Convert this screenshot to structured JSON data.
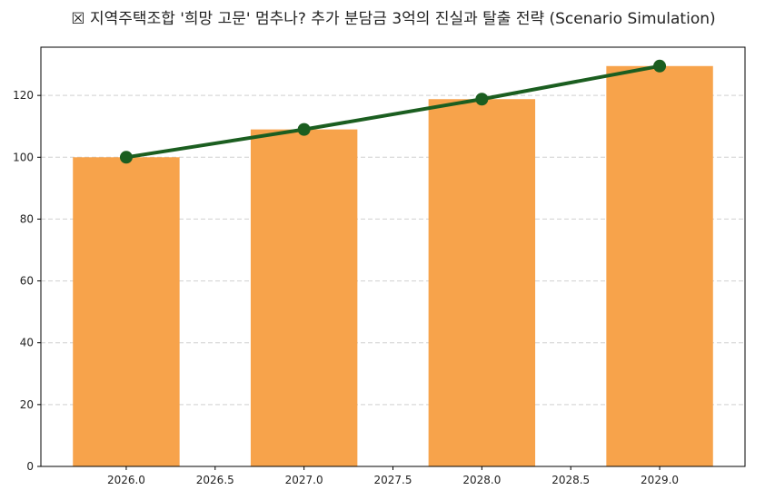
{
  "chart_data": {
    "type": "bar",
    "title": "☒ 지역주택조합 '희망 고문' 멈추나? 추가 분담금 3억의 진실과 탈출 전략 (Scenario Simulation)",
    "xlabel": "",
    "ylabel": "",
    "x": [
      2026,
      2027,
      2028,
      2029
    ],
    "bar_values": [
      100,
      109,
      118.8,
      129.5
    ],
    "line_values": [
      100,
      109,
      118.8,
      129.5
    ],
    "xlim": [
      2025.52,
      2029.48
    ],
    "ylim": [
      0,
      135.6
    ],
    "xticks": [
      "2026.0",
      "2026.5",
      "2027.0",
      "2027.5",
      "2028.0",
      "2028.5",
      "2029.0"
    ],
    "yticks": [
      "0",
      "20",
      "40",
      "60",
      "80",
      "100",
      "120"
    ],
    "grid": "y dashed",
    "colors": {
      "bar": "#f7a34b",
      "line": "#1b5e20",
      "grid": "#d0d0d0"
    }
  }
}
